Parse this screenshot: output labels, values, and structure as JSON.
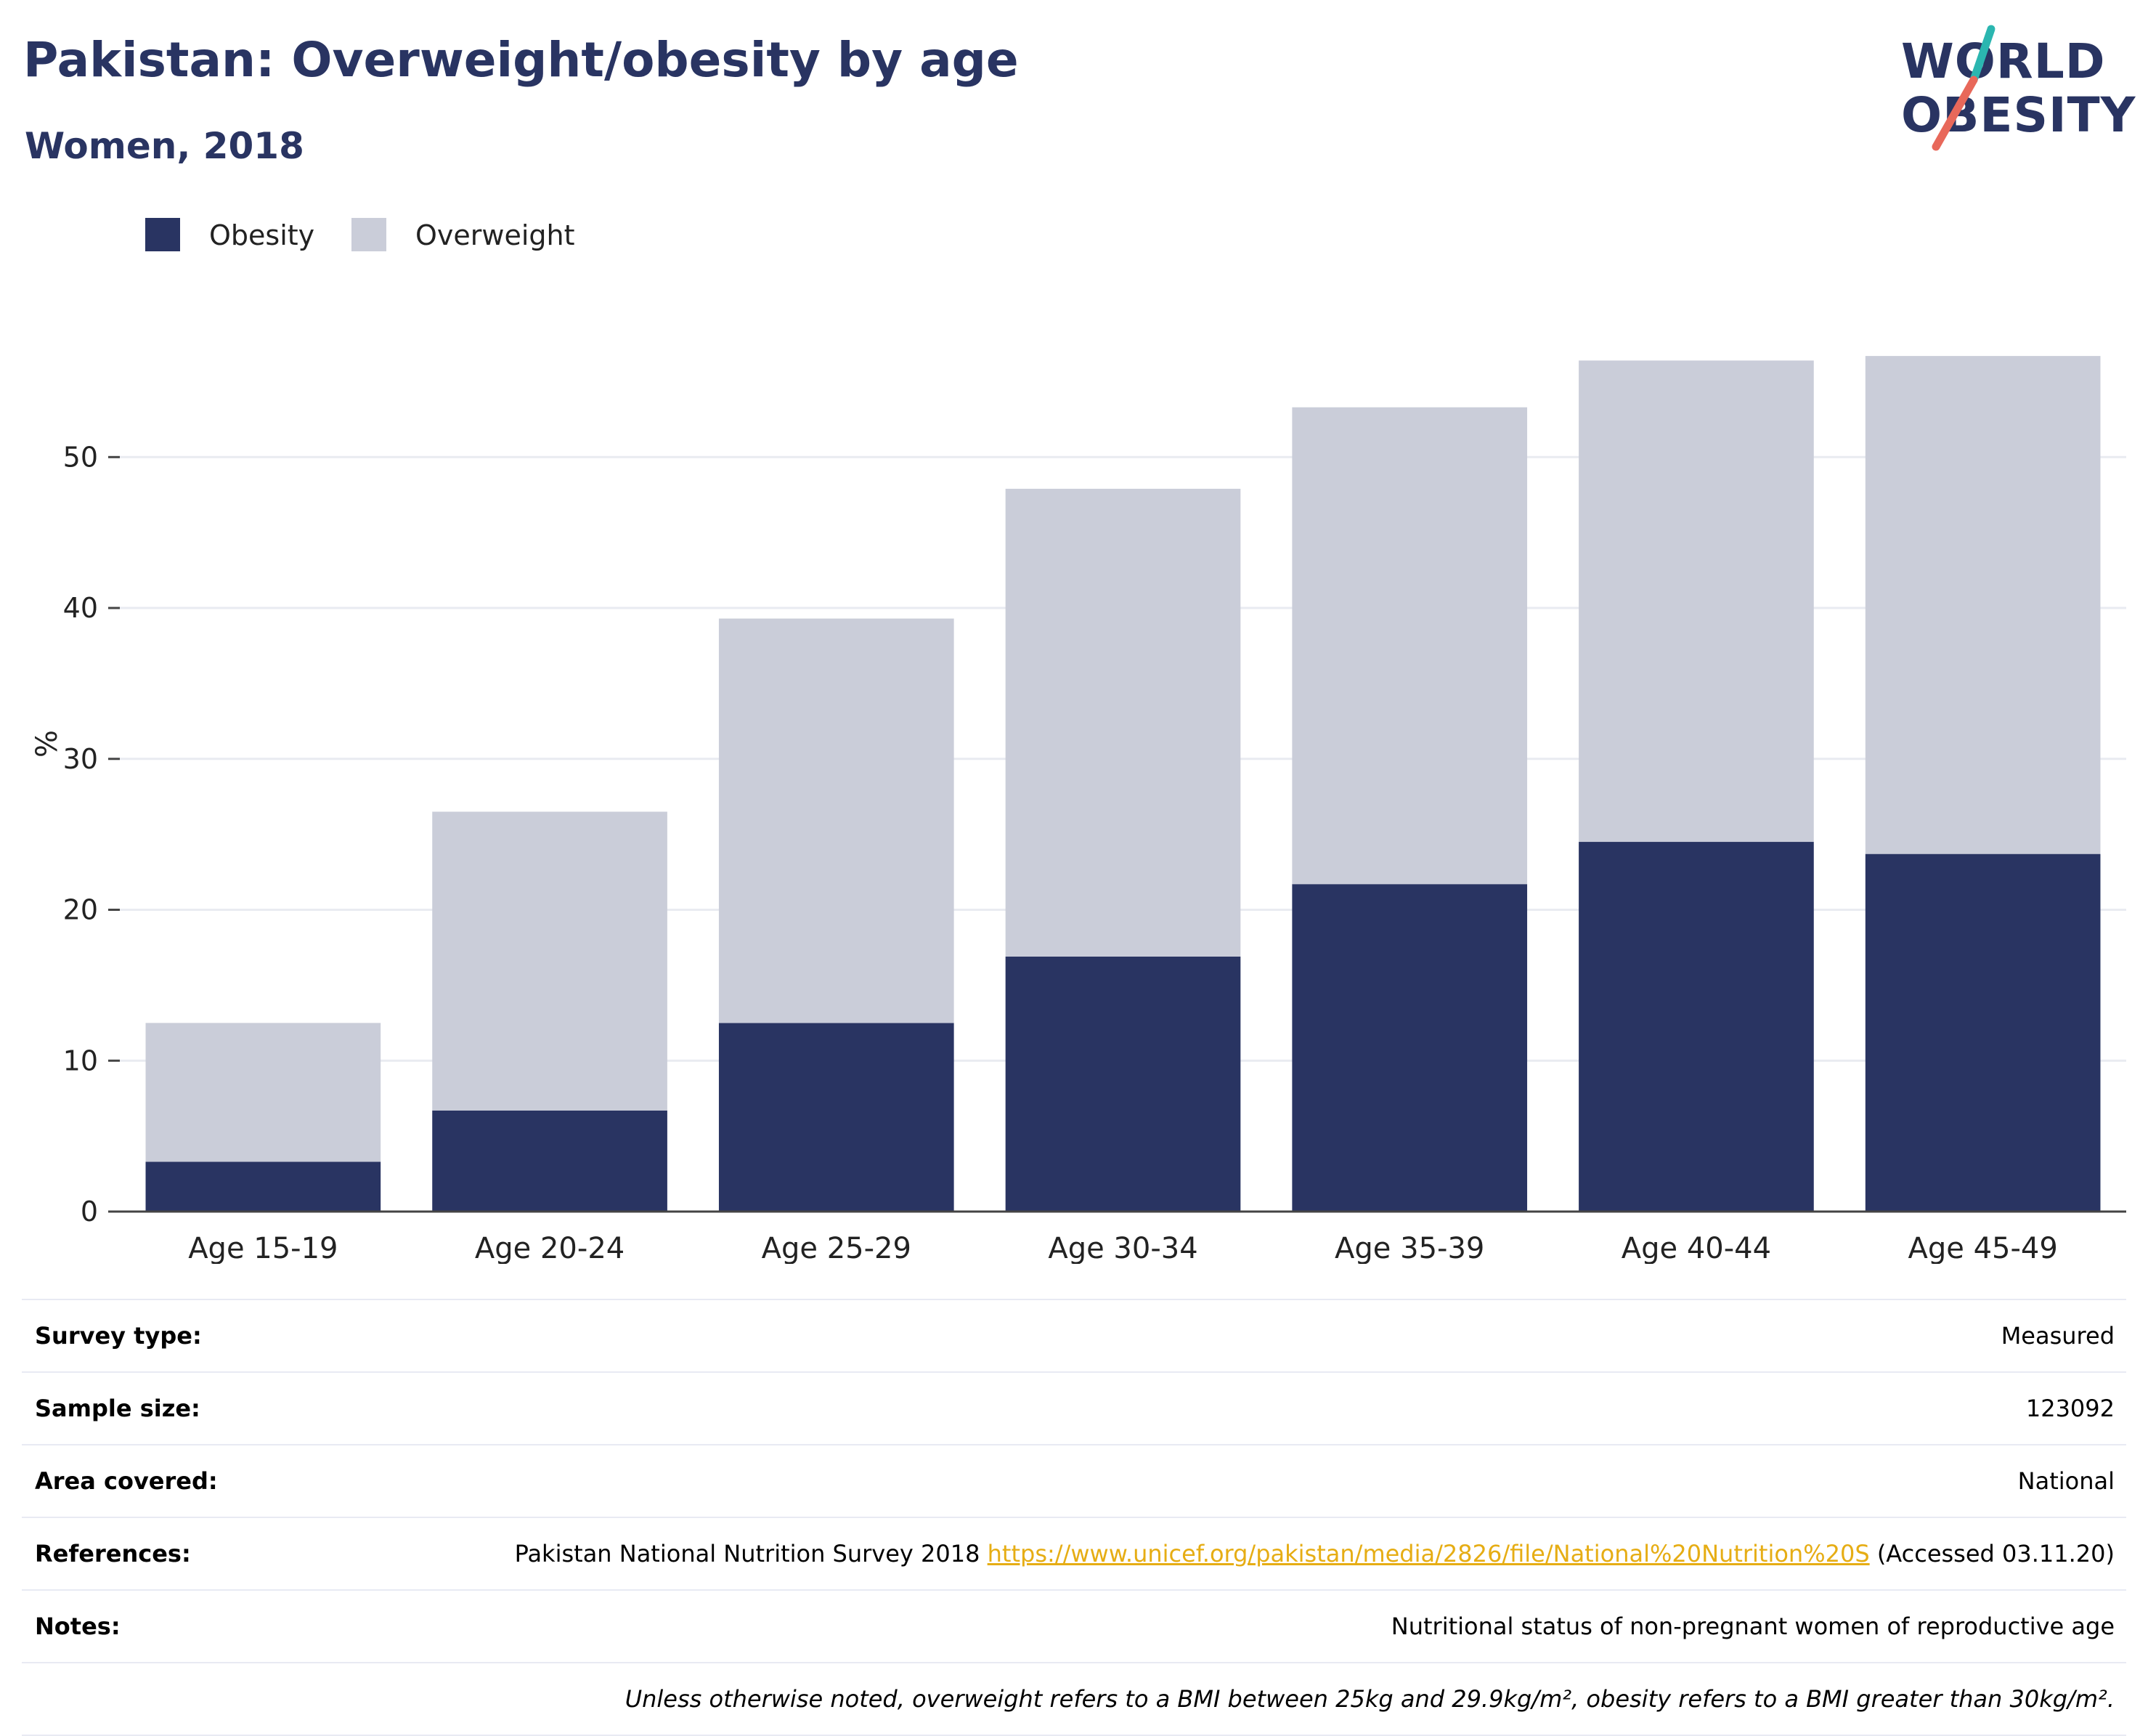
{
  "header": {
    "title": "Pakistan: Overweight/obesity by age",
    "subtitle": "Women, 2018"
  },
  "logo": {
    "line1": "WORLD",
    "line2": "OBESITY",
    "colors": {
      "text": "#293462",
      "slash_top": "#2bb6b0",
      "slash_bottom": "#e8685a"
    }
  },
  "legend": {
    "items": [
      {
        "label": "Obesity",
        "color": "#293462"
      },
      {
        "label": "Overweight",
        "color": "#cacdd9"
      }
    ]
  },
  "chart_data": {
    "type": "bar",
    "stacked": true,
    "categories": [
      "Age 15-19",
      "Age 20-24",
      "Age 25-29",
      "Age 30-34",
      "Age 35-39",
      "Age 40-44",
      "Age 45-49"
    ],
    "series": [
      {
        "name": "Obesity",
        "color": "#293462",
        "values": [
          3.3,
          6.7,
          12.5,
          16.9,
          21.7,
          24.5,
          23.7
        ]
      },
      {
        "name": "Overweight",
        "color": "#cacdd9",
        "values": [
          9.2,
          19.8,
          26.8,
          31.0,
          31.6,
          31.9,
          33.0
        ]
      }
    ],
    "title": "Pakistan: Overweight/obesity by age",
    "subtitle": "Women, 2018",
    "xlabel": "",
    "ylabel": "%",
    "ylim": [
      0,
      62
    ],
    "yticks": [
      0,
      10,
      20,
      30,
      40,
      50
    ],
    "grid": true,
    "legend_position": "top-left"
  },
  "info": {
    "survey_type": {
      "label": "Survey type:",
      "value": "Measured"
    },
    "sample_size": {
      "label": "Sample size:",
      "value": "123092"
    },
    "area_covered": {
      "label": "Area covered:",
      "value": "National"
    },
    "references": {
      "label": "References:",
      "text": "Pakistan National Nutrition Survey 2018",
      "link": "https://www.unicef.org/pakistan/media/2826/file/National%20Nutrition%20S",
      "accessed": "(Accessed 03.11.20)"
    },
    "notes": {
      "label": "Notes:",
      "value": "Nutritional status of non-pregnant women of reproductive age",
      "footnote": "Unless otherwise noted, overweight refers to a BMI between 25kg and 29.9kg/m², obesity refers to a BMI greater than 30kg/m²."
    }
  }
}
